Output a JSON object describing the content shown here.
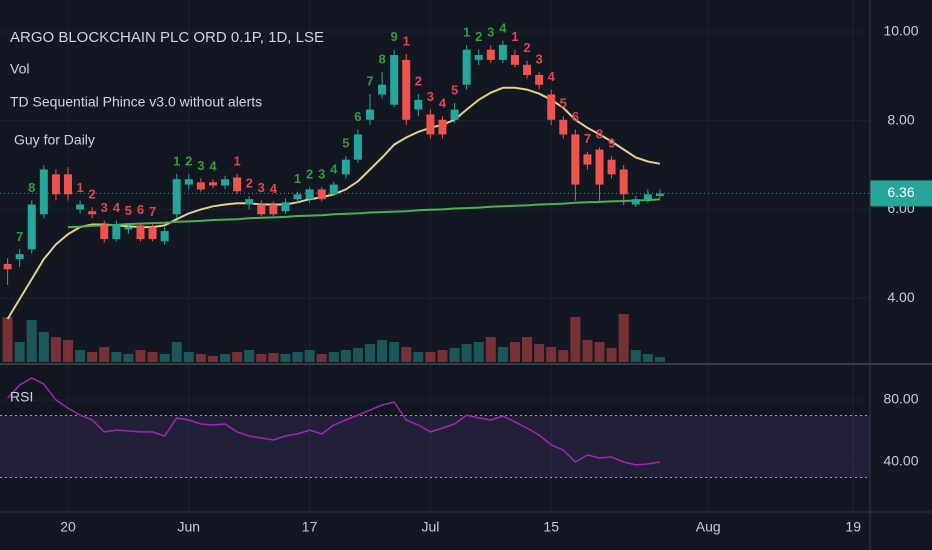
{
  "chart_data": [
    {
      "type": "candlestick",
      "title": "ARGO BLOCKCHAIN PLC ORD 0.1P, 1D, LSE",
      "indicators": [
        "Vol",
        "TD Sequential Phince v3.0 without alerts",
        "Guy for Daily"
      ],
      "categories": [
        null,
        null,
        null,
        null,
        null,
        "20",
        null,
        null,
        null,
        null,
        null,
        null,
        null,
        null,
        null,
        "Jun",
        null,
        null,
        null,
        null,
        null,
        null,
        null,
        null,
        null,
        "17",
        null,
        null,
        null,
        null,
        null,
        null,
        null,
        null,
        null,
        "Jul",
        null,
        null,
        null,
        null,
        null,
        null,
        null,
        null,
        null,
        "15",
        null,
        null,
        null,
        null,
        null,
        null,
        null,
        null,
        null,
        null,
        null,
        null,
        "Aug",
        null,
        null,
        null,
        null,
        null,
        null,
        null,
        null,
        null,
        null,
        null,
        "19",
        null
      ],
      "open": [
        4.77,
        4.88,
        5.1,
        5.89,
        6.79,
        6.79,
        6.0,
        5.96,
        5.66,
        5.33,
        5.55,
        5.64,
        5.6,
        5.28,
        5.89,
        6.56,
        6.61,
        6.61,
        6.54,
        6.72,
        6.11,
        6.11,
        6.11,
        5.96,
        6.23,
        6.23,
        6.45,
        6.34,
        6.79,
        7.12,
        8.02,
        8.59,
        8.36,
        9.37,
        8.25,
        8.14,
        8.02,
        8.02,
        8.81,
        9.37,
        9.6,
        9.37,
        9.48,
        9.26,
        9.03,
        8.59,
        8.02,
        7.69,
        7.24,
        7.35,
        7.12,
        6.9,
        6.11,
        6.23,
        6.3,
        null,
        null,
        null,
        null,
        null,
        null,
        null,
        null,
        null,
        null,
        null,
        null,
        null,
        null,
        null,
        null,
        null
      ],
      "high": [
        4.9,
        5.1,
        6.2,
        7.0,
        6.9,
        6.95,
        6.2,
        6.05,
        5.75,
        5.75,
        5.68,
        5.7,
        5.66,
        5.6,
        6.8,
        6.8,
        6.7,
        6.68,
        6.76,
        6.8,
        6.3,
        6.2,
        6.18,
        6.25,
        6.4,
        6.5,
        6.5,
        6.62,
        7.2,
        7.8,
        8.6,
        9.1,
        9.6,
        9.5,
        8.6,
        8.25,
        8.1,
        8.4,
        9.7,
        9.6,
        9.7,
        9.8,
        9.6,
        9.35,
        9.1,
        8.7,
        8.1,
        7.8,
        7.3,
        7.4,
        7.2,
        7.0,
        6.3,
        6.45,
        6.45,
        null,
        null,
        null,
        null,
        null,
        null,
        null,
        null,
        null,
        null,
        null,
        null,
        null,
        null,
        null,
        null,
        null
      ],
      "low": [
        4.3,
        4.7,
        5.0,
        5.8,
        6.2,
        6.2,
        5.9,
        5.8,
        5.25,
        5.28,
        5.45,
        5.28,
        5.28,
        5.2,
        5.8,
        6.45,
        6.4,
        6.48,
        6.45,
        6.35,
        6.0,
        5.85,
        5.85,
        5.9,
        6.15,
        6.15,
        6.18,
        6.3,
        6.7,
        7.05,
        7.9,
        8.5,
        8.3,
        7.9,
        8.1,
        7.6,
        7.6,
        7.95,
        8.7,
        9.25,
        9.3,
        9.3,
        9.2,
        8.95,
        8.7,
        7.9,
        7.6,
        6.2,
        6.9,
        6.2,
        6.7,
        6.1,
        6.05,
        6.15,
        6.25,
        null,
        null,
        null,
        null,
        null,
        null,
        null,
        null,
        null,
        null,
        null,
        null,
        null,
        null,
        null,
        null,
        null
      ],
      "close": [
        4.65,
        4.99,
        6.11,
        6.9,
        6.34,
        6.34,
        6.11,
        5.89,
        5.33,
        5.66,
        5.6,
        5.33,
        5.33,
        5.51,
        6.68,
        6.68,
        6.45,
        6.54,
        6.68,
        6.41,
        6.23,
        5.89,
        5.89,
        6.16,
        6.34,
        6.45,
        6.23,
        6.56,
        7.12,
        7.69,
        8.25,
        8.81,
        9.48,
        8.02,
        8.47,
        7.69,
        7.69,
        8.25,
        9.6,
        9.48,
        9.37,
        9.71,
        9.26,
        9.03,
        8.81,
        8.02,
        7.69,
        6.56,
        7.01,
        6.56,
        6.79,
        6.34,
        6.23,
        6.34,
        6.36,
        null,
        null,
        null,
        null,
        null,
        null,
        null,
        null,
        null,
        null,
        null,
        null,
        null,
        null,
        null,
        null,
        null
      ],
      "up_color": "#26a69a",
      "down_color": "#ef5350",
      "volume": [
        45,
        20,
        42,
        30,
        25,
        22,
        12,
        10,
        15,
        10,
        8,
        12,
        10,
        8,
        20,
        10,
        8,
        6,
        8,
        10,
        12,
        8,
        9,
        8,
        10,
        12,
        8,
        10,
        12,
        14,
        18,
        22,
        20,
        15,
        10,
        10,
        12,
        14,
        18,
        20,
        25,
        15,
        20,
        25,
        18,
        15,
        12,
        45,
        22,
        20,
        14,
        48,
        12,
        8,
        5,
        null,
        null,
        null,
        null,
        null,
        null,
        null,
        null,
        null,
        null,
        null,
        null,
        null,
        null,
        null,
        null,
        null
      ],
      "volume_ylim": [
        0,
        150
      ],
      "lines": [
        {
          "color": "#e3cf8f",
          "values": [
            3.53,
            3.98,
            4.43,
            4.88,
            5.21,
            5.44,
            5.6,
            5.66,
            5.66,
            5.64,
            5.62,
            5.6,
            5.6,
            5.64,
            5.78,
            5.91,
            6.0,
            6.07,
            6.11,
            6.14,
            6.14,
            6.11,
            6.11,
            6.11,
            6.16,
            6.23,
            6.27,
            6.34,
            6.45,
            6.63,
            6.9,
            7.17,
            7.46,
            7.62,
            7.75,
            7.84,
            7.91,
            8.02,
            8.25,
            8.47,
            8.63,
            8.74,
            8.74,
            8.7,
            8.61,
            8.47,
            8.29,
            8.02,
            7.84,
            7.69,
            7.53,
            7.35,
            7.17,
            7.08,
            7.03,
            null,
            null,
            null,
            null,
            null,
            null,
            null,
            null,
            null,
            null,
            null,
            null,
            null,
            null,
            null,
            null,
            null
          ]
        },
        {
          "color": "#4caf50",
          "values": [
            null,
            null,
            null,
            null,
            null,
            5.6,
            5.61,
            5.63,
            5.64,
            5.65,
            5.67,
            5.68,
            5.69,
            5.7,
            5.72,
            5.73,
            5.74,
            5.76,
            5.77,
            5.78,
            5.8,
            5.81,
            5.82,
            5.83,
            5.85,
            5.86,
            5.87,
            5.89,
            5.9,
            5.91,
            5.93,
            5.94,
            5.95,
            5.96,
            5.98,
            5.99,
            6.0,
            6.02,
            6.03,
            6.04,
            6.06,
            6.07,
            6.08,
            6.09,
            6.11,
            6.12,
            6.13,
            6.15,
            6.16,
            6.17,
            6.18,
            6.19,
            6.2,
            6.21,
            6.23,
            null,
            null,
            null,
            null,
            null,
            null,
            null,
            null,
            null,
            null,
            null,
            null,
            null,
            null,
            null,
            null,
            null
          ]
        }
      ],
      "td_up": {
        "color": "#2e9e3a",
        "values": [
          null,
          7,
          8,
          null,
          null,
          null,
          null,
          null,
          null,
          null,
          null,
          null,
          null,
          null,
          1,
          2,
          3,
          4,
          null,
          null,
          null,
          null,
          null,
          null,
          1,
          2,
          3,
          4,
          5,
          6,
          7,
          8,
          9,
          null,
          null,
          null,
          null,
          null,
          1,
          2,
          3,
          4,
          null,
          null,
          null,
          null,
          null,
          null,
          null,
          null,
          null,
          null,
          null,
          null,
          null,
          null,
          null,
          null,
          null,
          null,
          null,
          null,
          null,
          null,
          null,
          null,
          null,
          null,
          null,
          null,
          null,
          null
        ]
      },
      "td_down": {
        "color": "#e0454f",
        "values": [
          null,
          null,
          null,
          null,
          null,
          null,
          1,
          2,
          3,
          4,
          5,
          6,
          7,
          null,
          null,
          null,
          null,
          null,
          null,
          1,
          2,
          3,
          4,
          null,
          null,
          null,
          null,
          null,
          null,
          null,
          null,
          null,
          null,
          1,
          2,
          3,
          4,
          5,
          null,
          null,
          null,
          null,
          1,
          2,
          3,
          4,
          5,
          6,
          7,
          8,
          9,
          null,
          null,
          null,
          null,
          null,
          null,
          null,
          null,
          null,
          null,
          null,
          null,
          null,
          null,
          null,
          null,
          null,
          null,
          null,
          null,
          null
        ]
      },
      "ylim": [
        2.56,
        10.72
      ],
      "yticks": [
        {
          "value": 4,
          "label": "4.00"
        },
        {
          "value": 6,
          "label": "6.00"
        },
        {
          "value": 8,
          "label": "8.00"
        },
        {
          "value": 10,
          "label": "10.00"
        }
      ],
      "last_price": 6.36,
      "grid": true
    },
    {
      "type": "line",
      "title": "RSI",
      "series": [
        {
          "color": "#9c27b0",
          "values": [
            81.3,
            89.7,
            94.2,
            90.3,
            80,
            74.8,
            70.3,
            67.1,
            59.4,
            60.6,
            60,
            59.4,
            59.4,
            56.8,
            68.4,
            67.1,
            64.5,
            63.9,
            64.5,
            59.4,
            56.8,
            55.5,
            54.2,
            56.8,
            58.1,
            60.6,
            58.1,
            63.9,
            67.1,
            70.3,
            73.5,
            76.8,
            78.7,
            67.1,
            63.9,
            59.4,
            61.9,
            64.5,
            70.3,
            68.4,
            67.1,
            69.7,
            65.8,
            61.9,
            57.4,
            51,
            47.7,
            40,
            44.5,
            42.6,
            43.2,
            40,
            38.1,
            38.7,
            40,
            null,
            null,
            null,
            null,
            null,
            null,
            null,
            null,
            null,
            null,
            null,
            null,
            null,
            null,
            null,
            null,
            null
          ]
        }
      ],
      "ylim": [
        7.7,
        98.1
      ],
      "yticks": [
        {
          "value": 40,
          "label": "40.00"
        },
        {
          "value": 80,
          "label": "80.00"
        }
      ],
      "bands": [
        30,
        70
      ],
      "band_color": "#7e57c2",
      "grid": true
    }
  ]
}
